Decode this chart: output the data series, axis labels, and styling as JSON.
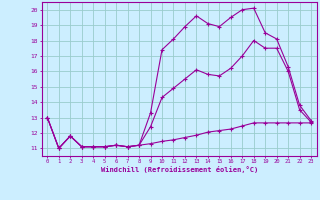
{
  "xlabel": "Windchill (Refroidissement éolien,°C)",
  "ylabel": "",
  "background_color": "#cceeff",
  "line_color": "#990099",
  "grid_color": "#99cccc",
  "axis_color": "#990099",
  "tick_color": "#990099",
  "xlim": [
    -0.5,
    23.5
  ],
  "ylim": [
    10.5,
    20.5
  ],
  "yticks": [
    11,
    12,
    13,
    14,
    15,
    16,
    17,
    18,
    19,
    20
  ],
  "xticks": [
    0,
    1,
    2,
    3,
    4,
    5,
    6,
    7,
    8,
    9,
    10,
    11,
    12,
    13,
    14,
    15,
    16,
    17,
    18,
    19,
    20,
    21,
    22,
    23
  ],
  "line1_x": [
    0,
    1,
    2,
    3,
    4,
    5,
    6,
    7,
    8,
    9,
    10,
    11,
    12,
    13,
    14,
    15,
    16,
    17,
    18,
    19,
    20,
    21,
    22,
    23
  ],
  "line1_y": [
    13.0,
    11.0,
    11.8,
    11.1,
    11.1,
    11.1,
    11.2,
    11.1,
    11.2,
    13.3,
    17.4,
    18.1,
    18.9,
    19.6,
    19.1,
    18.9,
    19.5,
    20.0,
    20.1,
    18.5,
    18.1,
    16.3,
    13.8,
    12.8
  ],
  "line2_x": [
    0,
    1,
    2,
    3,
    4,
    5,
    6,
    7,
    8,
    9,
    10,
    11,
    12,
    13,
    14,
    15,
    16,
    17,
    18,
    19,
    20,
    21,
    22,
    23
  ],
  "line2_y": [
    13.0,
    11.0,
    11.8,
    11.1,
    11.1,
    11.1,
    11.2,
    11.1,
    11.2,
    12.4,
    14.3,
    14.9,
    15.5,
    16.1,
    15.8,
    15.7,
    16.2,
    17.0,
    18.0,
    17.5,
    17.5,
    16.0,
    13.5,
    12.7
  ],
  "line3_x": [
    0,
    1,
    2,
    3,
    4,
    5,
    6,
    7,
    8,
    9,
    10,
    11,
    12,
    13,
    14,
    15,
    16,
    17,
    18,
    19,
    20,
    21,
    22,
    23
  ],
  "line3_y": [
    13.0,
    11.0,
    11.8,
    11.1,
    11.1,
    11.1,
    11.2,
    11.1,
    11.2,
    11.3,
    11.45,
    11.55,
    11.7,
    11.85,
    12.05,
    12.15,
    12.25,
    12.45,
    12.65,
    12.65,
    12.65,
    12.65,
    12.65,
    12.65
  ]
}
